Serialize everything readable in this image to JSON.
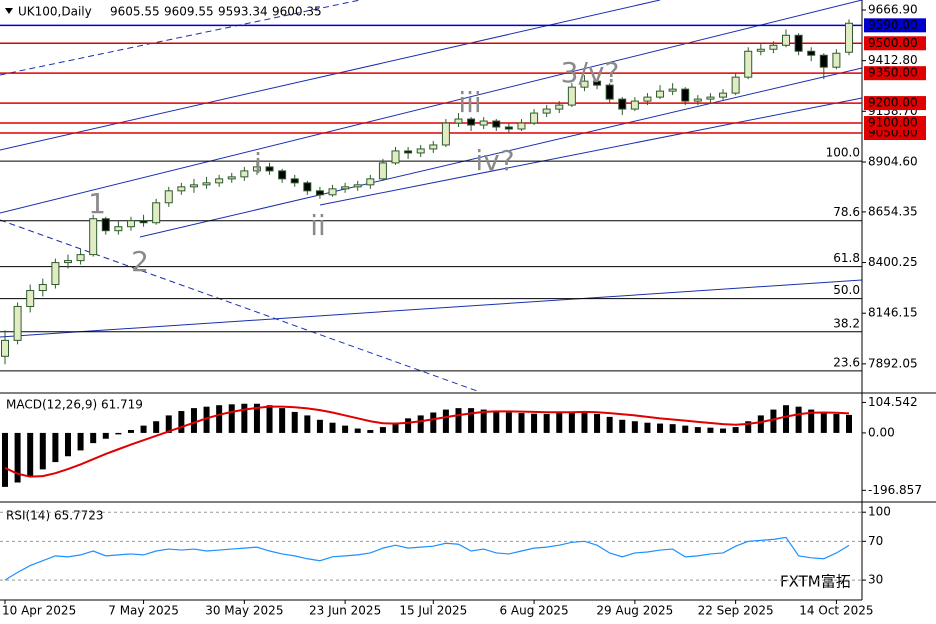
{
  "chart_data": [
    {
      "type": "candlestick",
      "title": "UK100,Daily",
      "last_ohlc": [
        9605.55,
        9609.55,
        9593.34,
        9600.35
      ],
      "up_color": "#e2ecc4",
      "down_color": "#000000",
      "outline_color": "#2f5a2f",
      "categories": [
        "10 Apr 2025",
        null,
        null,
        null,
        null,
        null,
        null,
        null,
        null,
        null,
        null,
        "7 May 2025",
        null,
        null,
        null,
        null,
        null,
        null,
        null,
        "30 May 2025",
        null,
        null,
        null,
        null,
        null,
        null,
        null,
        "23 Jun 2025",
        null,
        null,
        null,
        null,
        null,
        null,
        "15 Jul 2025",
        null,
        null,
        null,
        null,
        null,
        null,
        null,
        "6 Aug 2025",
        null,
        null,
        null,
        null,
        null,
        null,
        null,
        "29 Aug 2025",
        null,
        null,
        null,
        null,
        null,
        null,
        null,
        "22 Sep 2025",
        null,
        null,
        null,
        null,
        null,
        null,
        null,
        "14 Oct 2025",
        null
      ],
      "ohlc": [
        [
          7930,
          8060,
          7890,
          8010
        ],
        [
          8010,
          8200,
          7990,
          8180
        ],
        [
          8180,
          8290,
          8150,
          8260
        ],
        [
          8260,
          8320,
          8230,
          8290
        ],
        [
          8290,
          8420,
          8270,
          8400
        ],
        [
          8400,
          8440,
          8370,
          8410
        ],
        [
          8410,
          8470,
          8390,
          8440
        ],
        [
          8440,
          8640,
          8430,
          8620
        ],
        [
          8620,
          8630,
          8540,
          8560
        ],
        [
          8560,
          8610,
          8540,
          8580
        ],
        [
          8580,
          8630,
          8560,
          8610
        ],
        [
          8610,
          8640,
          8580,
          8600
        ],
        [
          8600,
          8720,
          8590,
          8700
        ],
        [
          8700,
          8780,
          8680,
          8760
        ],
        [
          8760,
          8800,
          8740,
          8780
        ],
        [
          8780,
          8820,
          8750,
          8790
        ],
        [
          8790,
          8830,
          8770,
          8800
        ],
        [
          8800,
          8840,
          8780,
          8820
        ],
        [
          8820,
          8850,
          8800,
          8830
        ],
        [
          8830,
          8880,
          8810,
          8860
        ],
        [
          8860,
          8910,
          8840,
          8880
        ],
        [
          8880,
          8900,
          8840,
          8860
        ],
        [
          8860,
          8870,
          8800,
          8820
        ],
        [
          8820,
          8840,
          8780,
          8800
        ],
        [
          8800,
          8810,
          8740,
          8760
        ],
        [
          8760,
          8780,
          8720,
          8740
        ],
        [
          8740,
          8790,
          8730,
          8770
        ],
        [
          8770,
          8800,
          8750,
          8780
        ],
        [
          8780,
          8810,
          8760,
          8790
        ],
        [
          8790,
          8840,
          8770,
          8820
        ],
        [
          8820,
          8920,
          8810,
          8900
        ],
        [
          8900,
          8980,
          8890,
          8960
        ],
        [
          8960,
          8980,
          8920,
          8950
        ],
        [
          8950,
          8990,
          8930,
          8970
        ],
        [
          8970,
          9010,
          8950,
          8990
        ],
        [
          8990,
          9120,
          8980,
          9100
        ],
        [
          9100,
          9150,
          9080,
          9120
        ],
        [
          9120,
          9130,
          9060,
          9090
        ],
        [
          9090,
          9130,
          9070,
          9110
        ],
        [
          9110,
          9120,
          9060,
          9080
        ],
        [
          9080,
          9100,
          9050,
          9070
        ],
        [
          9070,
          9120,
          9060,
          9100
        ],
        [
          9100,
          9170,
          9090,
          9150
        ],
        [
          9150,
          9190,
          9130,
          9170
        ],
        [
          9170,
          9210,
          9150,
          9190
        ],
        [
          9190,
          9300,
          9180,
          9280
        ],
        [
          9280,
          9340,
          9260,
          9310
        ],
        [
          9310,
          9320,
          9270,
          9290
        ],
        [
          9290,
          9300,
          9200,
          9220
        ],
        [
          9220,
          9230,
          9140,
          9170
        ],
        [
          9170,
          9230,
          9160,
          9210
        ],
        [
          9210,
          9250,
          9190,
          9230
        ],
        [
          9230,
          9290,
          9220,
          9260
        ],
        [
          9260,
          9300,
          9240,
          9270
        ],
        [
          9270,
          9280,
          9190,
          9210
        ],
        [
          9210,
          9240,
          9190,
          9220
        ],
        [
          9220,
          9250,
          9200,
          9230
        ],
        [
          9230,
          9270,
          9210,
          9250
        ],
        [
          9250,
          9350,
          9240,
          9330
        ],
        [
          9330,
          9480,
          9320,
          9460
        ],
        [
          9460,
          9500,
          9440,
          9470
        ],
        [
          9470,
          9510,
          9450,
          9490
        ],
        [
          9490,
          9570,
          9480,
          9540
        ],
        [
          9540,
          9550,
          9440,
          9460
        ],
        [
          9460,
          9480,
          9410,
          9440
        ],
        [
          9440,
          9450,
          9320,
          9380
        ],
        [
          9380,
          9470,
          9370,
          9450
        ],
        [
          9455,
          9620,
          9440,
          9600.35
        ]
      ],
      "ylim": [
        7751,
        9707
      ],
      "yticks": [
        {
          "value": 9666.9,
          "label": "9666.90"
        },
        {
          "value": 9412.8,
          "label": "9412.80"
        },
        {
          "value": 9158.7,
          "label": "9158.70"
        },
        {
          "value": 8904.6,
          "label": "8904.60"
        },
        {
          "value": 8654.35,
          "label": "8654.35"
        },
        {
          "value": 8400.25,
          "label": "8400.25"
        },
        8146.15,
        7892.05
      ],
      "levels": [
        {
          "value": 9590,
          "label": "9590.00",
          "color": "#0000cc"
        },
        {
          "value": 9500,
          "label": "9500.00",
          "color": "#e00000"
        },
        {
          "value": 9350,
          "label": "9350.00",
          "color": "#e00000"
        },
        {
          "value": 9200,
          "label": "9200.00",
          "color": "#e00000"
        },
        {
          "value": 9050,
          "label": "9050.00",
          "color": "#e00000"
        },
        {
          "value": 9100,
          "label": "9100.00",
          "color": "#e00000"
        }
      ],
      "fib_levels": [
        {
          "value": 8909,
          "label": "100.0"
        },
        {
          "value": 8610,
          "label": "78.6"
        },
        {
          "value": 8380,
          "label": "61.8"
        },
        {
          "value": 8219,
          "label": "50.0"
        },
        {
          "value": 8053,
          "label": "38.2"
        },
        {
          "value": 7857,
          "label": "23.6"
        }
      ],
      "annotations": [
        "1",
        "2",
        "i",
        "ii",
        "iii",
        "iv?",
        "3/v?"
      ]
    },
    {
      "type": "macd",
      "title": "MACD(12,26,9) 61.719",
      "series": [
        {
          "color": "#000000",
          "values": [
            -185,
            -170,
            -150,
            -125,
            -100,
            -80,
            -60,
            -35,
            -20,
            -5,
            10,
            25,
            40,
            60,
            75,
            85,
            90,
            95,
            98,
            100,
            100,
            95,
            85,
            72,
            60,
            45,
            35,
            25,
            15,
            10,
            20,
            35,
            50,
            60,
            70,
            80,
            85,
            85,
            80,
            75,
            70,
            68,
            66,
            65,
            70,
            72,
            75,
            65,
            55,
            45,
            40,
            35,
            32,
            30,
            25,
            20,
            18,
            15,
            20,
            40,
            60,
            80,
            95,
            90,
            80,
            70,
            65,
            61.719
          ]
        },
        {
          "color": "#e00000",
          "values": [
            -120,
            -140,
            -150,
            -148,
            -138,
            -124,
            -108,
            -90,
            -72,
            -56,
            -40,
            -25,
            -10,
            5,
            20,
            35,
            50,
            62,
            72,
            80,
            86,
            90,
            90,
            88,
            84,
            78,
            70,
            60,
            50,
            40,
            33,
            32,
            35,
            40,
            47,
            54,
            61,
            67,
            72,
            74,
            74,
            73,
            72,
            71,
            71,
            71,
            72,
            71,
            68,
            64,
            60,
            55,
            50,
            46,
            42,
            38,
            34,
            30,
            28,
            31,
            37,
            46,
            56,
            64,
            69,
            70,
            69,
            67
          ]
        }
      ],
      "ylim": [
        -230,
        130
      ],
      "yticks": [
        104.542,
        {
          "value": 0,
          "label": "0.00"
        },
        -196.857
      ]
    },
    {
      "type": "rsi",
      "title": "RSI(14) 65.7723",
      "color": "#1e90ff",
      "values": [
        30,
        38,
        45,
        50,
        55,
        54,
        56,
        60,
        55,
        56,
        57,
        56,
        60,
        62,
        61,
        62,
        60,
        61,
        62,
        63,
        64,
        60,
        57,
        55,
        52,
        50,
        54,
        55,
        56,
        58,
        63,
        66,
        63,
        64,
        65,
        68,
        67,
        60,
        62,
        58,
        57,
        60,
        63,
        64,
        66,
        69,
        70,
        66,
        58,
        54,
        58,
        59,
        61,
        62,
        54,
        55,
        57,
        58,
        65,
        70,
        71,
        72,
        74,
        55,
        53,
        52,
        58,
        65.7723
      ],
      "ylim": [
        9.5,
        109.5
      ],
      "yticks": [
        100,
        70,
        30
      ]
    }
  ],
  "watermark": "FXTM富拓"
}
